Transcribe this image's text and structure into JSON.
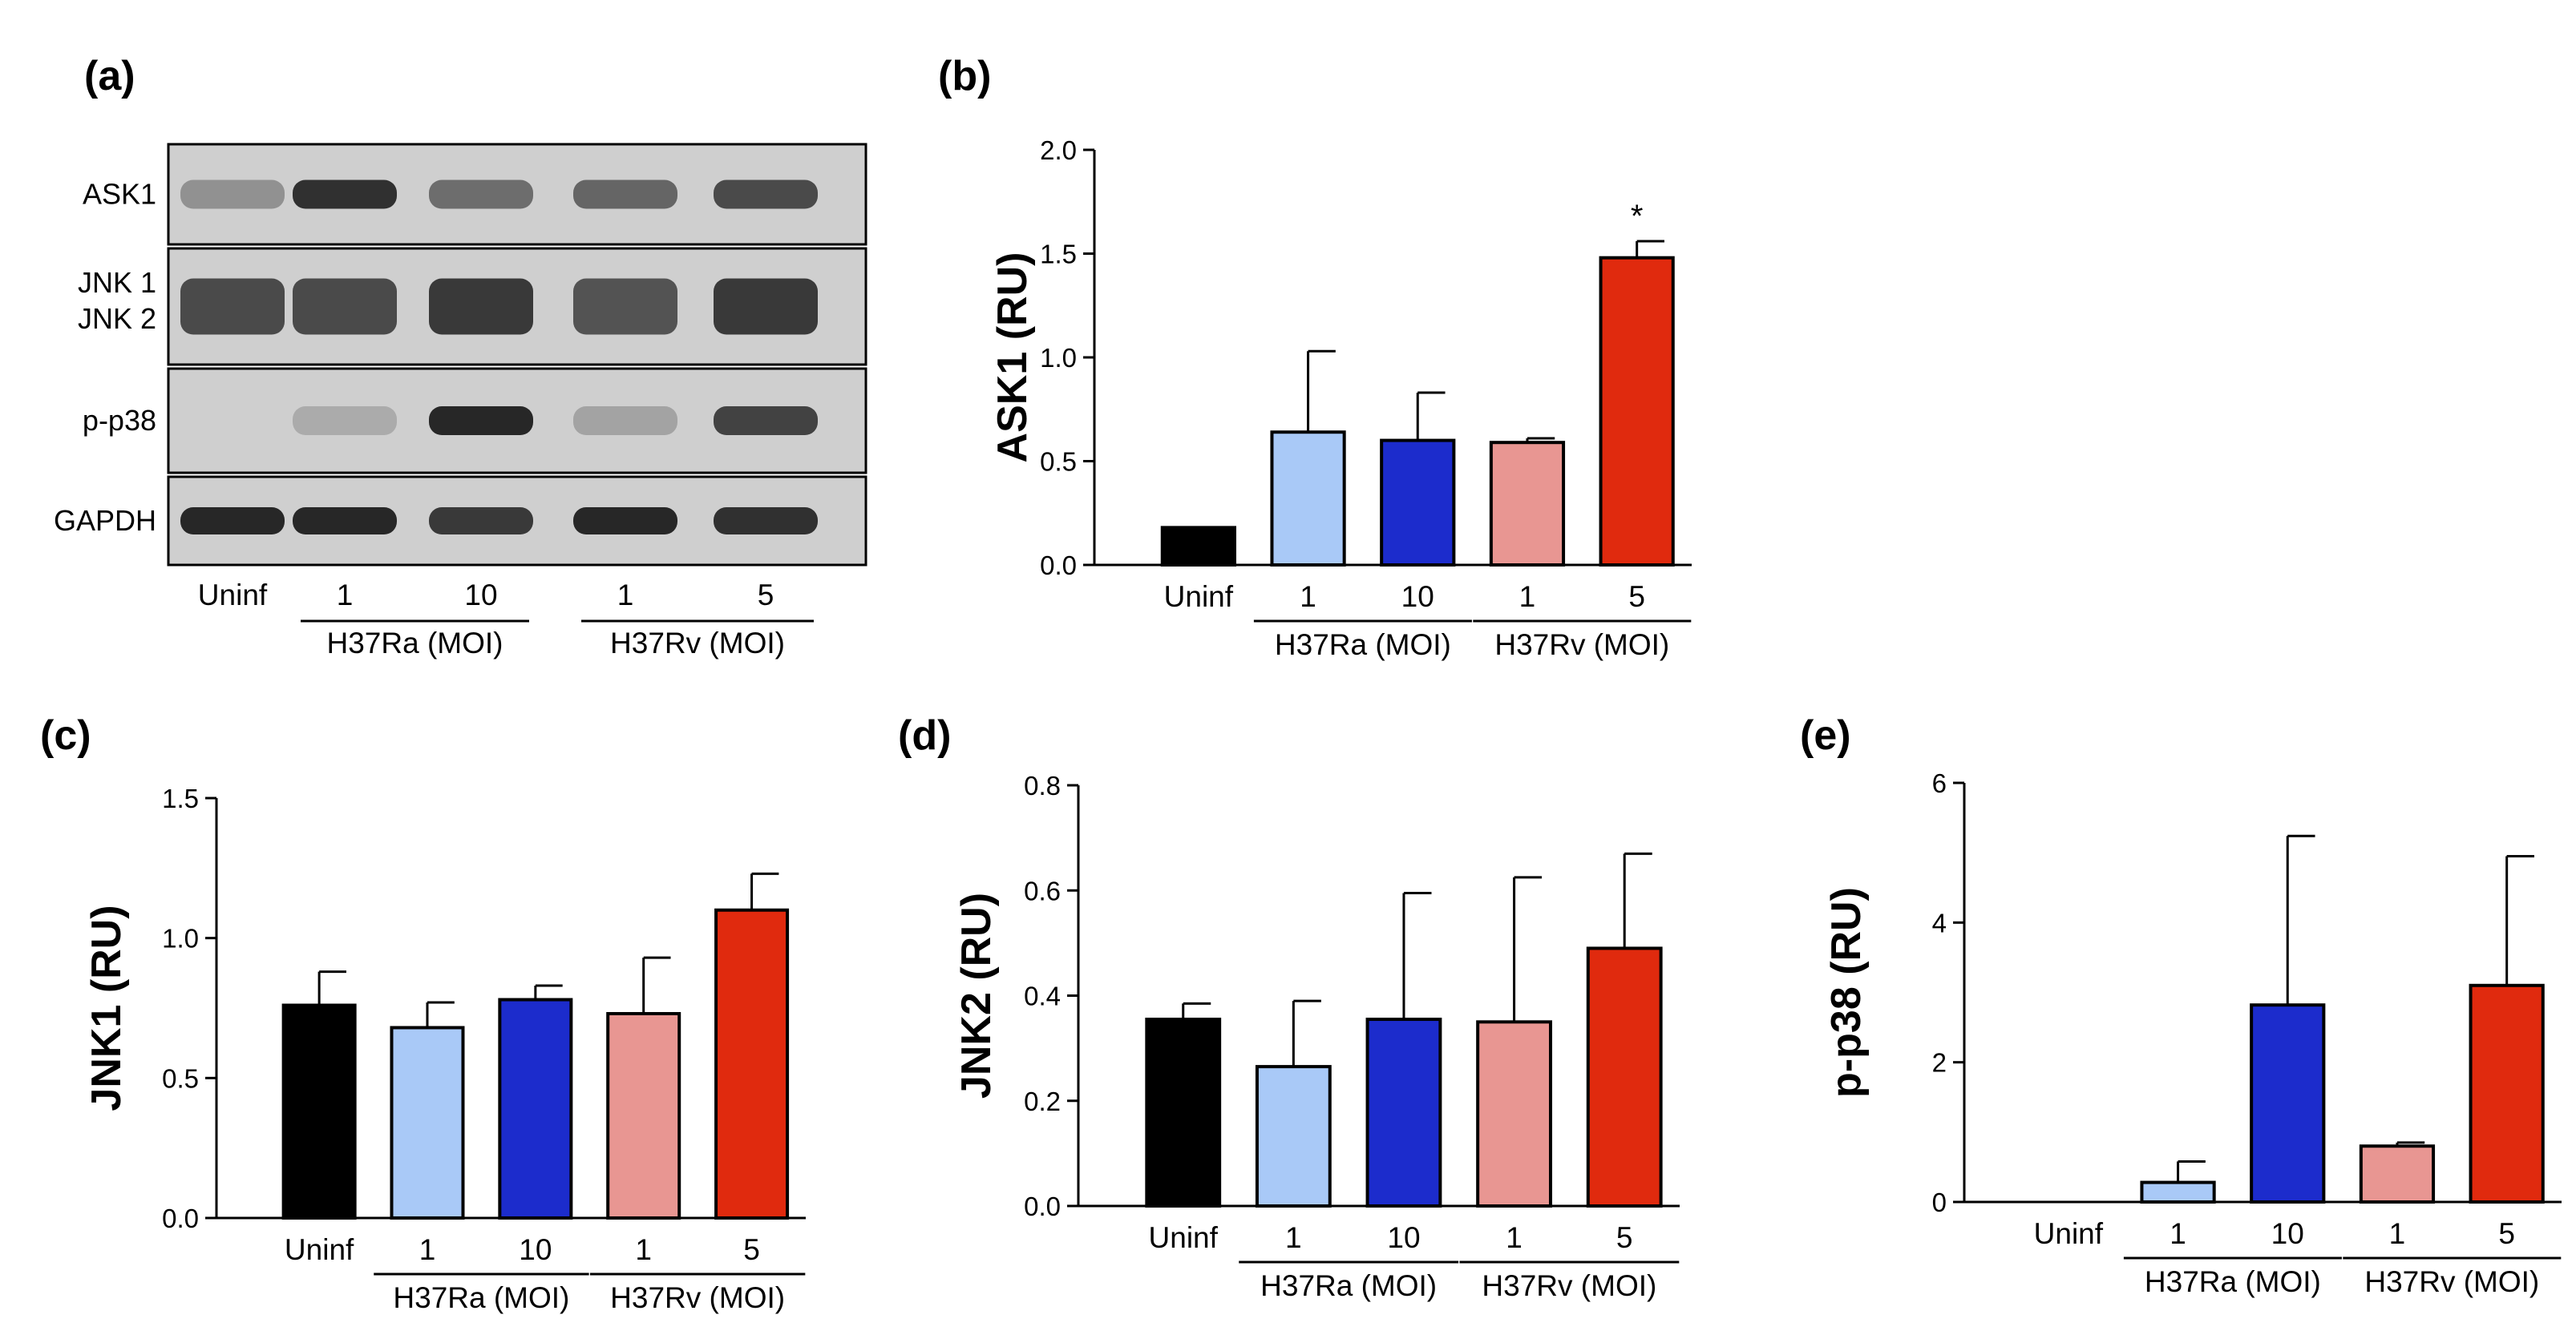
{
  "colors": {
    "uninf": "#000000",
    "ra1": "#a9c9f7",
    "ra10": "#1c2ccc",
    "rv1": "#e89692",
    "rv5": "#e02a0e",
    "band": "#1e1e1e",
    "blot_bg": "#cfcfcf"
  },
  "blot": {
    "letter": "(a)",
    "rows": [
      {
        "label": "ASK1",
        "intensity": [
          0.35,
          0.9,
          0.55,
          0.6,
          0.75
        ]
      },
      {
        "label": "JNK 1",
        "label2": "JNK 2",
        "intensity": [
          0.75,
          0.75,
          0.85,
          0.7,
          0.85
        ]
      },
      {
        "label": "p-p38",
        "intensity": [
          0.0,
          0.2,
          0.95,
          0.25,
          0.8
        ]
      },
      {
        "label": "GAPDH",
        "intensity": [
          0.95,
          0.95,
          0.85,
          0.95,
          0.9
        ]
      }
    ],
    "lanes": [
      "Uninf",
      "1",
      "10",
      "1",
      "5"
    ],
    "groups": [
      "H37Ra (MOI)",
      "H37Rv (MOI)"
    ]
  },
  "chart_data": [
    {
      "panel": "(b)",
      "type": "bar",
      "ylabel": "ASK1 (RU)",
      "categories": [
        "Uninf",
        "1",
        "10",
        "1",
        "5"
      ],
      "groups": [
        "H37Ra (MOI)",
        "H37Rv (MOI)"
      ],
      "values": [
        0.18,
        0.64,
        0.6,
        0.59,
        1.48
      ],
      "errors": [
        0.0,
        0.39,
        0.23,
        0.02,
        0.08
      ],
      "ylim": [
        0,
        2.0
      ],
      "yticks": [
        "0.0",
        "0.5",
        "1.0",
        "1.5",
        "2.0"
      ],
      "annotations": [
        {
          "index": 4,
          "text": "*"
        }
      ]
    },
    {
      "panel": "(c)",
      "type": "bar",
      "ylabel": "JNK1 (RU)",
      "categories": [
        "Uninf",
        "1",
        "10",
        "1",
        "5"
      ],
      "groups": [
        "H37Ra (MOI)",
        "H37Rv (MOI)"
      ],
      "values": [
        0.76,
        0.68,
        0.78,
        0.73,
        1.1
      ],
      "errors": [
        0.12,
        0.09,
        0.05,
        0.2,
        0.13
      ],
      "ylim": [
        0,
        1.5
      ],
      "yticks": [
        "0.0",
        "0.5",
        "1.0",
        "1.5"
      ],
      "annotations": []
    },
    {
      "panel": "(d)",
      "type": "bar",
      "ylabel": "JNK2 (RU)",
      "categories": [
        "Uninf",
        "1",
        "10",
        "1",
        "5"
      ],
      "groups": [
        "H37Ra (MOI)",
        "H37Rv (MOI)"
      ],
      "values": [
        0.355,
        0.265,
        0.355,
        0.35,
        0.49
      ],
      "errors": [
        0.03,
        0.125,
        0.24,
        0.275,
        0.18
      ],
      "ylim": [
        0,
        0.8
      ],
      "yticks": [
        "0.0",
        "0.2",
        "0.4",
        "0.6",
        "0.8"
      ],
      "annotations": []
    },
    {
      "panel": "(e)",
      "type": "bar",
      "ylabel": "p-p38 (RU)",
      "categories": [
        "Uninf",
        "1",
        "10",
        "1",
        "5"
      ],
      "groups": [
        "H37Ra (MOI)",
        "H37Rv (MOI)"
      ],
      "values": [
        0.0,
        0.28,
        2.82,
        0.8,
        3.1
      ],
      "errors": [
        0.0,
        0.3,
        2.42,
        0.05,
        1.85
      ],
      "ylim": [
        0,
        6
      ],
      "yticks": [
        "0",
        "2",
        "4",
        "6"
      ],
      "annotations": []
    }
  ]
}
